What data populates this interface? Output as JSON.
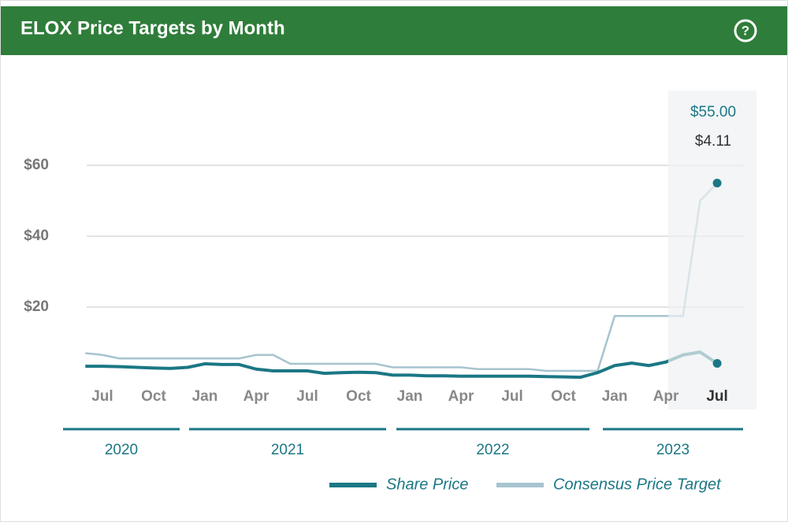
{
  "header": {
    "title": "ELOX Price Targets by Month"
  },
  "chart_data": {
    "type": "line",
    "x": [
      "2020-06",
      "2020-07",
      "2020-08",
      "2020-09",
      "2020-10",
      "2020-11",
      "2020-12",
      "2021-01",
      "2021-02",
      "2021-03",
      "2021-04",
      "2021-05",
      "2021-06",
      "2021-07",
      "2021-08",
      "2021-09",
      "2021-10",
      "2021-11",
      "2021-12",
      "2022-01",
      "2022-02",
      "2022-03",
      "2022-04",
      "2022-05",
      "2022-06",
      "2022-07",
      "2022-08",
      "2022-09",
      "2022-10",
      "2022-11",
      "2022-12",
      "2023-01",
      "2023-02",
      "2023-03",
      "2023-04",
      "2023-05",
      "2023-06",
      "2023-07"
    ],
    "series": [
      {
        "name": "Share Price",
        "color": "#1b7785",
        "values": [
          3.3,
          3.3,
          3.2,
          3.0,
          2.8,
          2.7,
          3.0,
          4.0,
          3.8,
          3.8,
          2.5,
          2.0,
          2.0,
          2.0,
          1.3,
          1.5,
          1.6,
          1.5,
          0.8,
          0.8,
          0.6,
          0.6,
          0.5,
          0.5,
          0.5,
          0.5,
          0.5,
          0.4,
          0.3,
          0.2,
          1.5,
          3.5,
          4.2,
          3.5,
          4.5,
          6.5,
          7.3,
          4.11
        ]
      },
      {
        "name": "Consensus Price Target",
        "color": "#a6c4cf",
        "values": [
          7.0,
          6.5,
          5.5,
          5.5,
          5.5,
          5.5,
          5.5,
          5.5,
          5.5,
          5.5,
          6.5,
          6.5,
          4.0,
          4.0,
          4.0,
          4.0,
          4.0,
          4.0,
          3.0,
          3.0,
          3.0,
          3.0,
          3.0,
          2.5,
          2.5,
          2.5,
          2.5,
          2.0,
          2.0,
          2.0,
          2.0,
          17.5,
          17.5,
          17.5,
          17.5,
          17.5,
          50,
          55
        ]
      }
    ],
    "ylim": [
      0,
      70
    ],
    "yticks": [
      {
        "value": 20,
        "label": "$20"
      },
      {
        "value": 40,
        "label": "$40"
      },
      {
        "value": 60,
        "label": "$60"
      }
    ],
    "xticks": [
      {
        "value": "2020-07",
        "label": "Jul"
      },
      {
        "value": "2020-10",
        "label": "Oct"
      },
      {
        "value": "2021-01",
        "label": "Jan"
      },
      {
        "value": "2021-04",
        "label": "Apr"
      },
      {
        "value": "2021-07",
        "label": "Jul"
      },
      {
        "value": "2021-10",
        "label": "Oct"
      },
      {
        "value": "2022-01",
        "label": "Jan"
      },
      {
        "value": "2022-04",
        "label": "Apr"
      },
      {
        "value": "2022-07",
        "label": "Jul"
      },
      {
        "value": "2022-10",
        "label": "Oct"
      },
      {
        "value": "2023-01",
        "label": "Jan"
      },
      {
        "value": "2023-04",
        "label": "Apr"
      },
      {
        "value": "2023-07",
        "label": "Jul"
      }
    ],
    "years": [
      "2020",
      "2021",
      "2022",
      "2023"
    ],
    "grid": true,
    "tooltip": [
      {
        "value": 55,
        "label": "$55.00"
      },
      {
        "value": 4.11,
        "label": "$4.11"
      }
    ]
  }
}
